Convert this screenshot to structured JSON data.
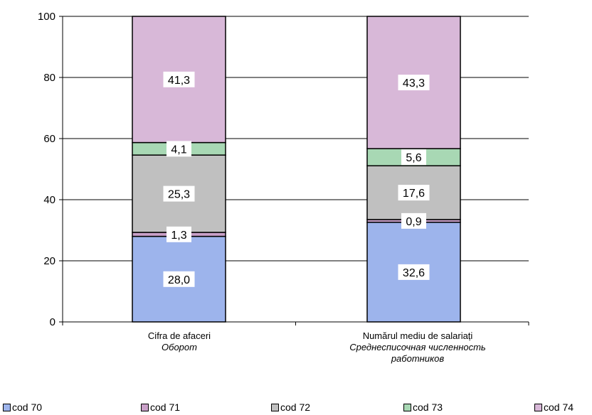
{
  "chart_data": {
    "type": "bar",
    "stacked": true,
    "ylim": [
      0,
      100
    ],
    "yticks": [
      0,
      20,
      40,
      60,
      80,
      100
    ],
    "grid": true,
    "legend_position": "bottom",
    "categories": [
      {
        "label": "Cifra de afaceri",
        "sublabel": "Оборот"
      },
      {
        "label": "Numărul mediu de salariați",
        "sublabel": "Среднесписочная численность работников"
      }
    ],
    "series": [
      {
        "name": "cod 70",
        "values": [
          28.0,
          32.6
        ],
        "labels": [
          "28,0",
          "32,6"
        ],
        "color": "#9db4ec"
      },
      {
        "name": "cod 71",
        "values": [
          1.3,
          0.9
        ],
        "labels": [
          "1,3",
          "0,9"
        ],
        "color": "#c9a0c8"
      },
      {
        "name": "cod 72",
        "values": [
          25.3,
          17.6
        ],
        "labels": [
          "25,3",
          "17,6"
        ],
        "color": "#c0c0c0"
      },
      {
        "name": "cod 73",
        "values": [
          4.1,
          5.6
        ],
        "labels": [
          "4,1",
          "5,6"
        ],
        "color": "#a8d8b4"
      },
      {
        "name": "cod 74",
        "values": [
          41.3,
          43.3
        ],
        "labels": [
          "41,3",
          "43,3"
        ],
        "color": "#d8b8d8"
      }
    ]
  }
}
